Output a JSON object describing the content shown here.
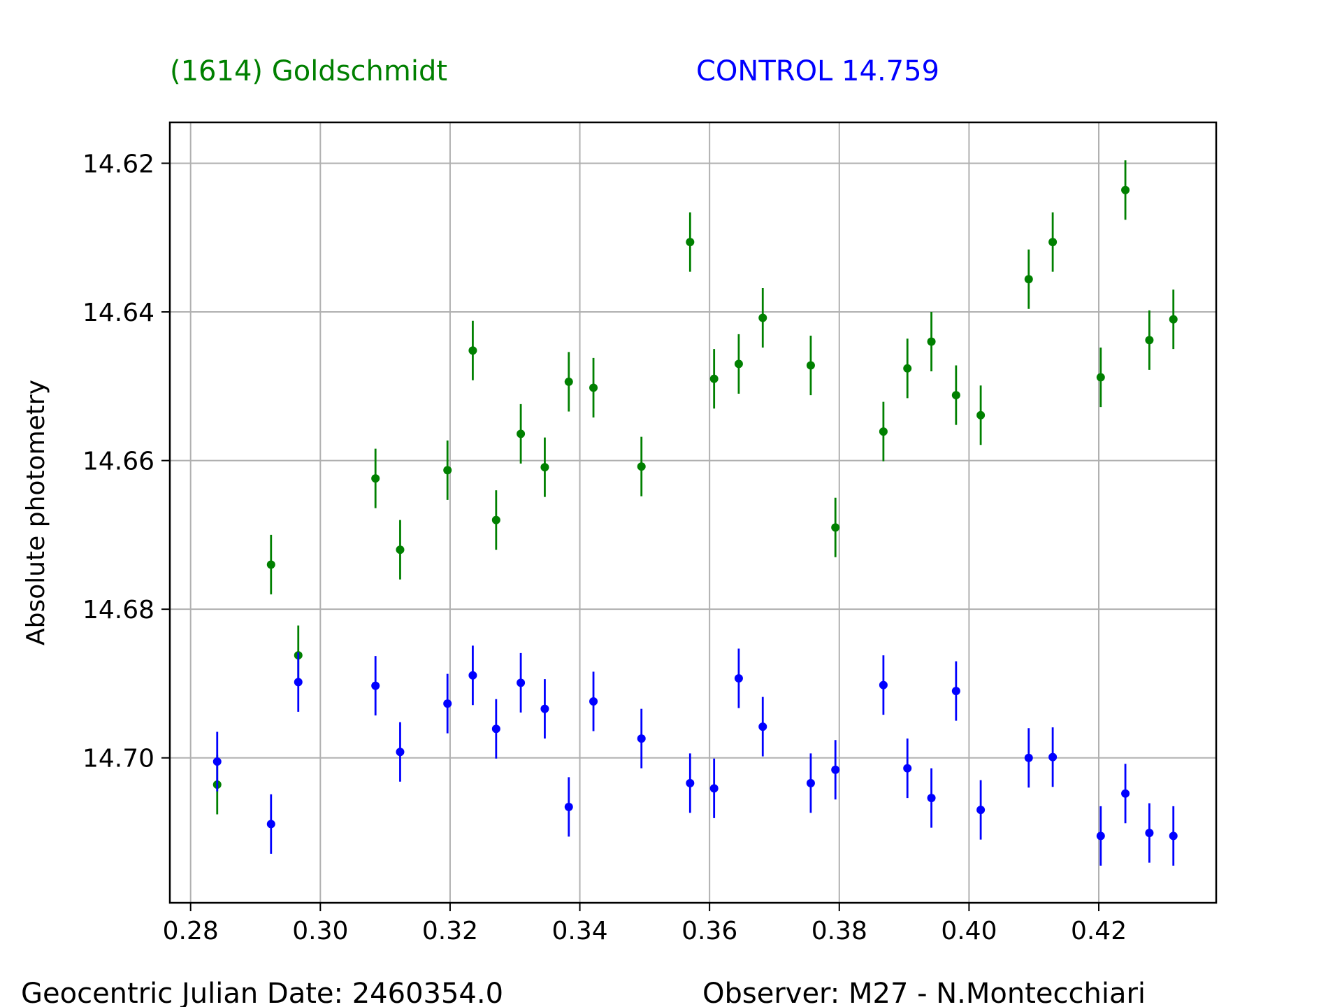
{
  "header": {
    "target_label": "(1614) Goldschmidt",
    "control_label": "CONTROL 14.759"
  },
  "footer": {
    "date_label": "Geocentric Julian Date: 2460354.0",
    "observer_label": "Observer: M27 - N.Montecchiari"
  },
  "chart_data": {
    "type": "scatter",
    "title": "",
    "xlabel": "",
    "ylabel": "Absolute photometry",
    "xlim": [
      0.2768,
      0.4381
    ],
    "ylim": [
      14.7195,
      14.6145
    ],
    "y_inverted": true,
    "grid": true,
    "x_ticks": [
      0.28,
      0.3,
      0.32,
      0.34,
      0.36,
      0.38,
      0.4,
      0.42
    ],
    "x_tick_labels": [
      "0.28",
      "0.30",
      "0.32",
      "0.34",
      "0.36",
      "0.38",
      "0.40",
      "0.42"
    ],
    "y_ticks": [
      14.62,
      14.64,
      14.66,
      14.68,
      14.7
    ],
    "y_tick_labels": [
      "14.62",
      "14.64",
      "14.66",
      "14.68",
      "14.70"
    ],
    "colors": {
      "target": "#008000",
      "control": "#0000ff",
      "grid": "#b0b0b0"
    },
    "series": [
      {
        "name": "(1614) Goldschmidt",
        "color": "#008000",
        "x": [
          0.2841,
          0.2924,
          0.2966,
          0.3085,
          0.3123,
          0.3196,
          0.3235,
          0.3271,
          0.3309,
          0.3346,
          0.3383,
          0.3421,
          0.3495,
          0.357,
          0.3607,
          0.3645,
          0.3682,
          0.3756,
          0.3794,
          0.3868,
          0.3905,
          0.3942,
          0.398,
          0.4018,
          0.4092,
          0.4129,
          0.4203,
          0.4241,
          0.4278,
          0.4315
        ],
        "y": [
          14.7036,
          14.674,
          14.6862,
          14.6624,
          14.672,
          14.6613,
          14.6452,
          14.668,
          14.6564,
          14.6609,
          14.6494,
          14.6502,
          14.6608,
          14.6306,
          14.649,
          14.647,
          14.6408,
          14.6472,
          14.669,
          14.6561,
          14.6476,
          14.644,
          14.6512,
          14.6539,
          14.6356,
          14.6306,
          14.6488,
          14.6236,
          14.6438,
          14.641
        ],
        "err": 0.004
      },
      {
        "name": "CONTROL 14.759",
        "color": "#0000ff",
        "x": [
          0.2841,
          0.2924,
          0.2966,
          0.3085,
          0.3123,
          0.3196,
          0.3235,
          0.3271,
          0.3309,
          0.3346,
          0.3383,
          0.3421,
          0.3495,
          0.357,
          0.3607,
          0.3645,
          0.3682,
          0.3756,
          0.3794,
          0.3868,
          0.3905,
          0.3942,
          0.398,
          0.4018,
          0.4092,
          0.4129,
          0.4203,
          0.4241,
          0.4278,
          0.4315
        ],
        "y": [
          14.7005,
          14.7089,
          14.6898,
          14.6903,
          14.6992,
          14.6927,
          14.6889,
          14.6961,
          14.6899,
          14.6934,
          14.7066,
          14.6924,
          14.6974,
          14.7034,
          14.7041,
          14.6893,
          14.6958,
          14.7034,
          14.7016,
          14.6902,
          14.7014,
          14.7054,
          14.691,
          14.707,
          14.7,
          14.6999,
          14.7105,
          14.7048,
          14.7101,
          14.7105
        ],
        "err": 0.004
      }
    ]
  }
}
